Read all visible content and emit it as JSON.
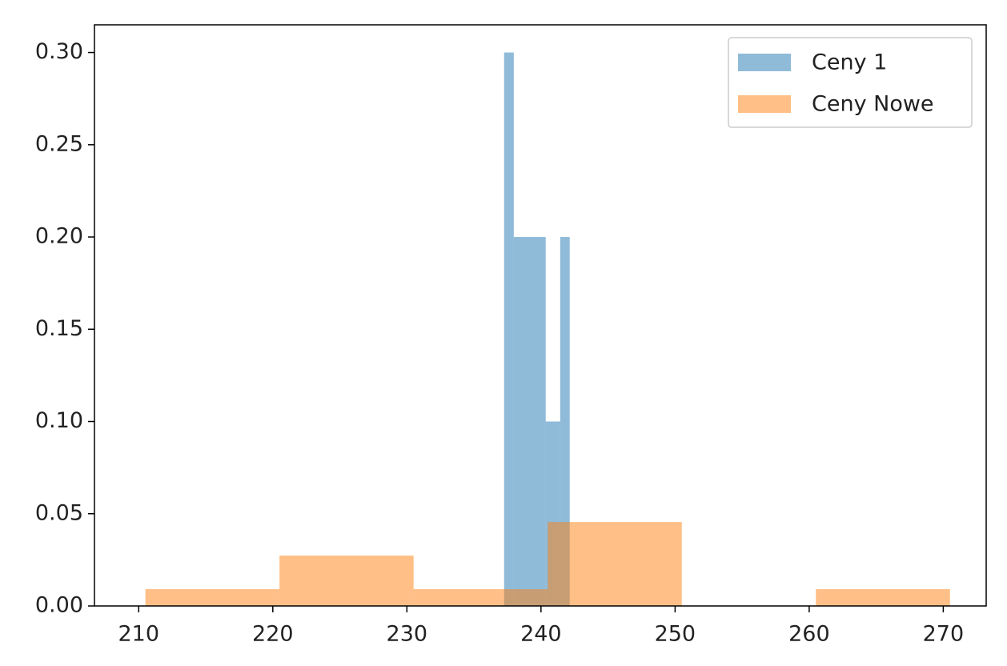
{
  "chart_data": {
    "type": "histogram",
    "series": [
      {
        "name": "Ceny 1",
        "color": "#1f77b4",
        "opacity": 0.5,
        "bins": [
          237.25,
          237.97,
          240.35,
          241.43,
          242.14
        ],
        "values": [
          0.3,
          0.2,
          0.1,
          0.2
        ]
      },
      {
        "name": "Ceny Nowe",
        "color": "#ff7f0e",
        "opacity": 0.5,
        "bins": [
          210.5,
          220.5,
          230.5,
          240.5,
          250.5,
          260.5,
          270.5
        ],
        "values": [
          0.0091,
          0.0273,
          0.0091,
          0.0455,
          0,
          0.0091
        ]
      }
    ],
    "xlim": [
      206.7,
      273.2
    ],
    "xticks": [
      210,
      220,
      230,
      240,
      250,
      260,
      270
    ],
    "ylim": [
      0,
      0.315
    ],
    "yticks": [
      {
        "value": 0,
        "label": "0.00"
      },
      0.05,
      {
        "value": 0.1,
        "label": "0.10"
      },
      0.15,
      {
        "value": 0.2,
        "label": "0.20"
      },
      0.25,
      {
        "value": 0.3,
        "label": "0.30"
      }
    ],
    "legend": "upper right"
  }
}
